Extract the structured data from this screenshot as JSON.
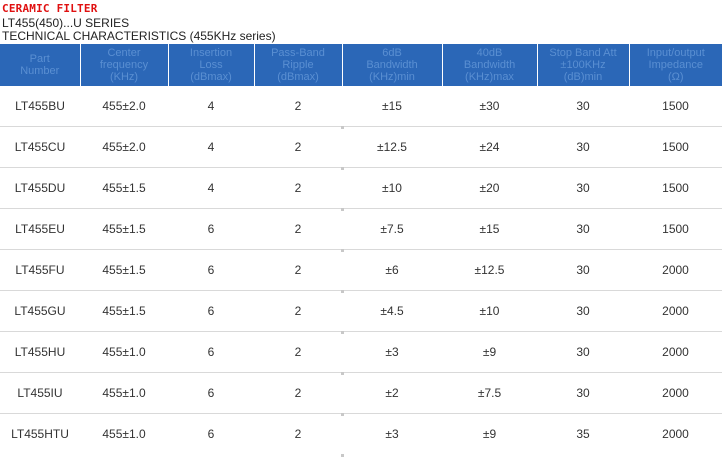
{
  "brand": "CERAMIC FILTER",
  "series": "LT455(450)...U SERIES",
  "subtitle": "TECHNICAL CHARACTERISTICS (455KHz series)",
  "columns": [
    {
      "line1": "Part",
      "line2": "Number",
      "line3": ""
    },
    {
      "line1": "Center",
      "line2": "frequency",
      "line3": "(KHz)"
    },
    {
      "line1": "Insertion",
      "line2": "Loss",
      "line3": "(dBmax)"
    },
    {
      "line1": "Pass-Band",
      "line2": "Ripple",
      "line3": "(dBmax)"
    },
    {
      "line1": "6dB",
      "line2": "Bandwidth",
      "line3": "(KHz)min"
    },
    {
      "line1": "40dB",
      "line2": "Bandwidth",
      "line3": "(KHz)max"
    },
    {
      "line1": "Stop Band Att",
      "line2": "±100KHz",
      "line3": "(dB)min"
    },
    {
      "line1": "Input/output",
      "line2": "Impedance",
      "line3": "(Ω)"
    }
  ],
  "rows": [
    [
      "LT455BU",
      "455±2.0",
      "4",
      "2",
      "±15",
      "±30",
      "30",
      "1500"
    ],
    [
      "LT455CU",
      "455±2.0",
      "4",
      "2",
      "±12.5",
      "±24",
      "30",
      "1500"
    ],
    [
      "LT455DU",
      "455±1.5",
      "4",
      "2",
      "±10",
      "±20",
      "30",
      "1500"
    ],
    [
      "LT455EU",
      "455±1.5",
      "6",
      "2",
      "±7.5",
      "±15",
      "30",
      "1500"
    ],
    [
      "LT455FU",
      "455±1.5",
      "6",
      "2",
      "±6",
      "±12.5",
      "30",
      "2000"
    ],
    [
      "LT455GU",
      "455±1.5",
      "6",
      "2",
      "±4.5",
      "±10",
      "30",
      "2000"
    ],
    [
      "LT455HU",
      "455±1.0",
      "6",
      "2",
      "±3",
      "±9",
      "30",
      "2000"
    ],
    [
      "LT455IU",
      "455±1.0",
      "6",
      "2",
      "±2",
      "±7.5",
      "30",
      "2000"
    ],
    [
      "LT455HTU",
      "455±1.0",
      "6",
      "2",
      "±3",
      "±9",
      "35",
      "2000"
    ]
  ]
}
